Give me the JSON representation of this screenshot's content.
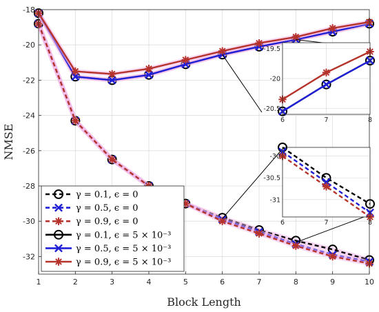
{
  "chart_data": {
    "type": "line",
    "title": "",
    "xlabel": "Block Length",
    "ylabel": "NMSE",
    "xlim": [
      1,
      10
    ],
    "ylim": [
      -33,
      -18
    ],
    "x": [
      1,
      2,
      3,
      4,
      5,
      6,
      7,
      8,
      9,
      10
    ],
    "xticks": [
      "1",
      "2",
      "3",
      "4",
      "5",
      "6",
      "7",
      "8",
      "9",
      "10"
    ],
    "yticks": [
      -32,
      -30,
      -28,
      -26,
      -24,
      -22,
      -20,
      -18
    ],
    "grid": true,
    "legend_position": "lower-left",
    "series": [
      {
        "name": "γ = 0.1, ϵ = 0",
        "color": "#000000",
        "dashed": true,
        "marker": "circle",
        "values": [
          -18.8,
          -24.3,
          -26.5,
          -28.0,
          -29.0,
          -29.8,
          -30.5,
          -31.1,
          -31.6,
          -32.2
        ]
      },
      {
        "name": "γ = 0.5, ϵ = 0",
        "color": "#1f1fd8",
        "dashed": true,
        "marker": "x",
        "values": [
          -18.8,
          -24.3,
          -26.5,
          -28.0,
          -29.0,
          -29.9,
          -30.6,
          -31.3,
          -31.9,
          -32.3
        ]
      },
      {
        "name": "γ = 0.9, ϵ = 0",
        "color": "#b5332b",
        "dashed": true,
        "marker": "star",
        "values": [
          -18.8,
          -24.3,
          -26.5,
          -28.0,
          -29.0,
          -30.0,
          -30.7,
          -31.4,
          -32.0,
          -32.4
        ]
      },
      {
        "name": "γ = 0.1, ϵ = 5 × 10⁻³",
        "color": "#000000",
        "dashed": false,
        "marker": "circle",
        "values": [
          -18.2,
          -21.8,
          -22.0,
          -21.7,
          -21.1,
          -20.55,
          -20.1,
          -19.7,
          -19.25,
          -18.8
        ]
      },
      {
        "name": "γ = 0.5, ϵ = 5 × 10⁻³",
        "color": "#1f1fd8",
        "dashed": false,
        "marker": "x",
        "values": [
          -18.2,
          -21.8,
          -22.0,
          -21.7,
          -21.1,
          -20.55,
          -20.1,
          -19.7,
          -19.25,
          -18.8
        ]
      },
      {
        "name": "γ = 0.9, ϵ = 5 × 10⁻³",
        "color": "#b5332b",
        "dashed": false,
        "marker": "star",
        "values": [
          -18.2,
          -21.5,
          -21.65,
          -21.35,
          -20.85,
          -20.35,
          -19.9,
          -19.55,
          -19.05,
          -18.7
        ]
      }
    ],
    "insets": [
      {
        "xlim": [
          6,
          8
        ],
        "ylim": [
          -20.6,
          -19.4
        ],
        "xticks": [
          "6",
          "7",
          "8"
        ],
        "yticks": [
          "-19.5",
          "-20",
          "-20.5"
        ],
        "ytick_values": [
          -19.5,
          -20,
          -20.5
        ],
        "series_indices": [
          3,
          4,
          5
        ]
      },
      {
        "xlim": [
          6,
          8
        ],
        "ylim": [
          -31.4,
          -29.8
        ],
        "xticks": [
          "6",
          "7",
          "8"
        ],
        "yticks": [
          "-30",
          "-30.5",
          "-31"
        ],
        "ytick_values": [
          -30,
          -30.5,
          -31
        ],
        "series_indices": [
          0,
          1,
          2
        ]
      }
    ]
  }
}
